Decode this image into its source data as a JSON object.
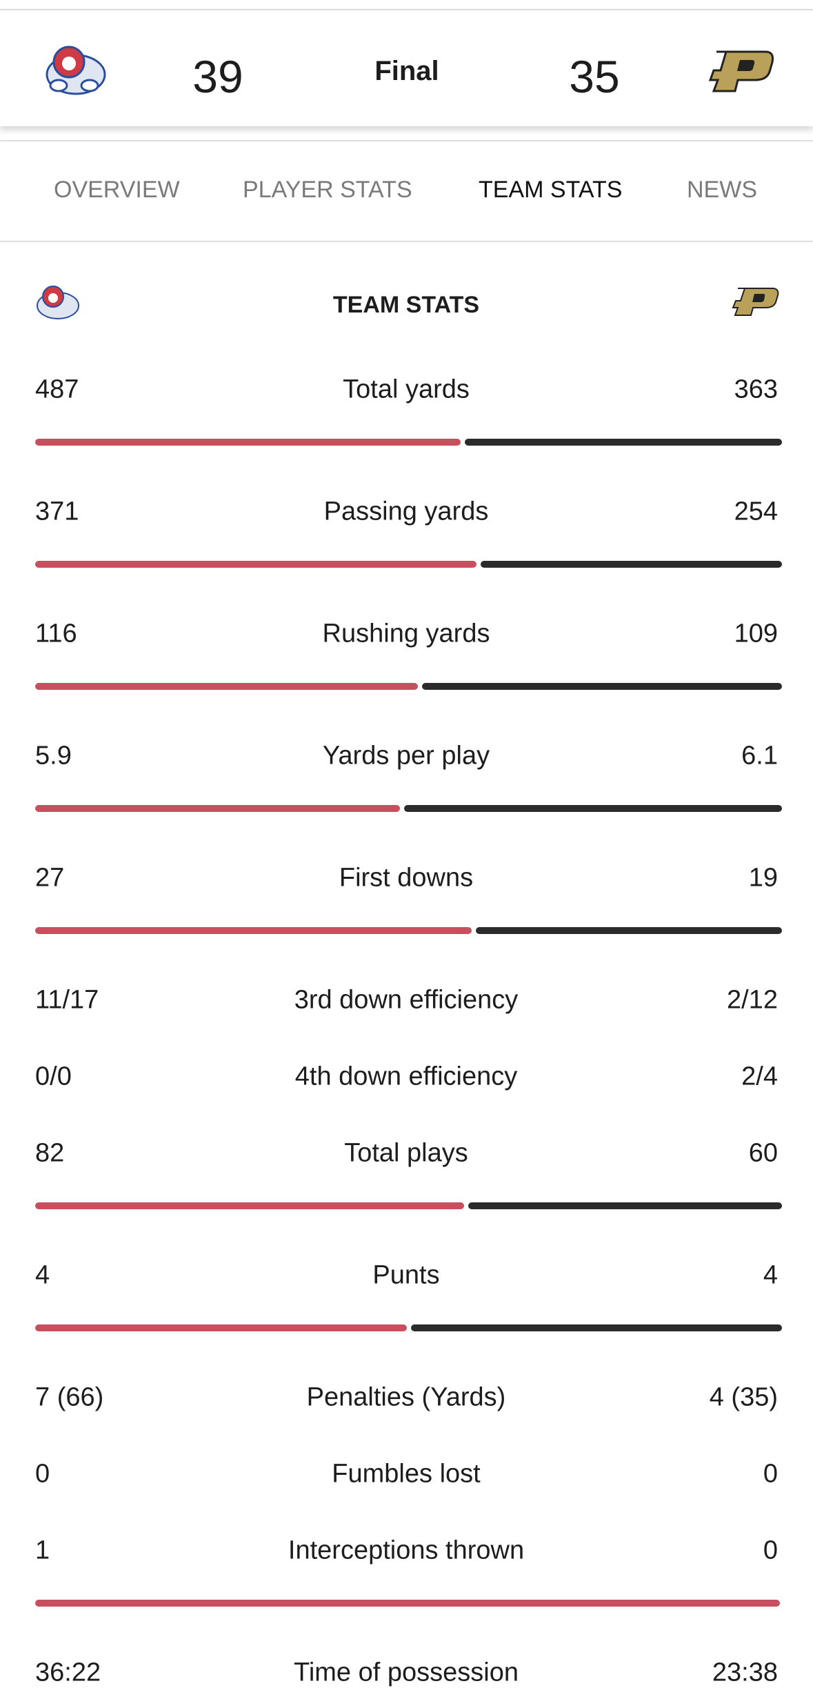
{
  "header": {
    "home_score": 39,
    "status": "Final",
    "away_score": 35
  },
  "tabs": [
    "OVERVIEW",
    "PLAYER STATS",
    "TEAM STATS",
    "NEWS"
  ],
  "active_tab": 2,
  "stats": {
    "title": "TEAM STATS",
    "home_color": "#c8505e",
    "away_color": "#2b2b2b",
    "rows": [
      {
        "label": "Total yards",
        "home": 487,
        "away": 363
      },
      {
        "label": "Passing yards",
        "home": 371,
        "away": 254
      },
      {
        "label": "Rushing yards",
        "home": 116,
        "away": 109
      },
      {
        "label": "Yards per play",
        "home": 5.9,
        "away": 6.1
      },
      {
        "label": "First downs",
        "home": 27,
        "away": 19
      },
      {
        "label": "3rd down efficiency",
        "home": "11/17",
        "away": "2/12"
      },
      {
        "label": "4th down efficiency",
        "home": "0/0",
        "away": "2/4"
      },
      {
        "label": "Total plays",
        "home": 82,
        "away": 60
      },
      {
        "label": "Punts",
        "home": 4,
        "away": 4
      },
      {
        "label": "Penalties (Yards)",
        "home": "7 (66)",
        "away": "4 (35)"
      },
      {
        "label": "Fumbles lost",
        "home": 0,
        "away": 0
      },
      {
        "label": "Interceptions thrown",
        "home": 1,
        "away": 0
      },
      {
        "label": "Time of possession",
        "home": "36:22",
        "away": "23:38"
      }
    ]
  }
}
